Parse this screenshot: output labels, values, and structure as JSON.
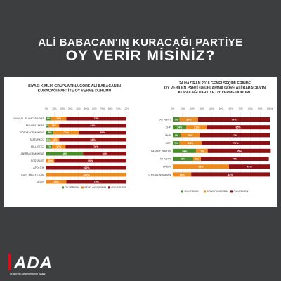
{
  "header": {
    "title_line1": "ALİ BABACAN'IN KURACAĞI PARTİYE",
    "title_line2": "OY VERİR MİSİNİZ?"
  },
  "logo": {
    "mark": "ADA",
    "tagline": "Araştırma Değerlendirme Analiz"
  },
  "colors": {
    "evet": "#4c8a2e",
    "belki": "#ec8a1d",
    "hayir": "#8c1216",
    "background": "#3c3e40"
  },
  "chart_data": [
    {
      "type": "bar",
      "stacked": true,
      "orientation": "horizontal",
      "title": "SİYASİ KİMLİK GRUPLARINA GÖRE ALİ BABACAN'IN KURACAĞI PARTİYE OY VERME DURUMU",
      "title_lines": [
        "SİYASİ KİMLİK GRUPLARINA GÖRE ALİ BABACAN'IN",
        "KURACAĞI PARTİYE OY VERME DURUMU"
      ],
      "ticks": [
        "0%",
        "10%",
        "20%",
        "30%",
        "40%",
        "50%",
        "60%",
        "70%",
        "80%",
        "90%",
        "100%"
      ],
      "xlim": [
        0,
        100
      ],
      "grid": true,
      "legend": "bottom",
      "categories": [
        "SİYASAL İSLAMCI/DİNDAR",
        "MUHAFAZAKAR",
        "SOSYAL DEMOKRAT",
        "ATATÜRKÇÜ",
        "MİLLİYETÇİ",
        "LİBERAL DEMOKRAT",
        "SOSYALİST",
        "APOLİTİK",
        "KÜRT MİLLİYETÇİSİ",
        "DİĞER"
      ],
      "series": [
        {
          "name": "OY VERİRİM",
          "values": [
            6,
            3,
            9,
            5,
            7,
            46,
            0,
            0,
            0,
            0
          ]
        },
        {
          "name": "BELKİ OY VERİRİM",
          "values": [
            19,
            13,
            32,
            11,
            17,
            0,
            10,
            0,
            100,
            25
          ]
        },
        {
          "name": "OY VERMEM",
          "values": [
            75,
            84,
            59,
            84,
            76,
            54,
            90,
            100,
            0,
            75
          ]
        }
      ],
      "labels": [
        [
          "6%",
          "19%",
          "75%"
        ],
        [
          "3%",
          "13%",
          "84%"
        ],
        [
          "9%",
          "32%",
          "59%"
        ],
        [
          "5%",
          "11%",
          "84%"
        ],
        [
          "7%",
          "17%",
          "76%"
        ],
        [
          "46%",
          "",
          "54%"
        ],
        [
          "",
          "10%",
          "90%"
        ],
        [
          "",
          "",
          "100%"
        ],
        [
          "",
          "100%",
          ""
        ],
        [
          "",
          "25%",
          "75%"
        ]
      ]
    },
    {
      "type": "bar",
      "stacked": true,
      "orientation": "horizontal",
      "title": "24 HAZİRAN 2018 GENELSEÇİMLERİNDE OY VERİLEN PARTİ GRUPLARINA GÖRE ALİ BABACAN'IN KURACAĞI PARTİYE OY VERME DURUMU",
      "title_lines": [
        "24 HAZİRAN 2018 GENELSEÇİMLERİNDE",
        "OY VERİLEN PARTİ GRUPLARINA GÖRE ALİ BABACAN'IN",
        "KURACAĞI PARTİYE OY VERME DURUMU"
      ],
      "ticks": [
        "0%",
        "10%",
        "20%",
        "30%",
        "40%",
        "50%",
        "60%",
        "70%",
        "80%",
        "90%",
        "100%"
      ],
      "xlim": [
        0,
        100
      ],
      "grid": true,
      "legend": "bottom",
      "categories": [
        "AK PARTİ",
        "CHP",
        "MHP",
        "HDP",
        "SAADET PARTİSİ",
        "İYİ PARTİ",
        "DİĞER",
        "OY KULLANMAYAN"
      ],
      "series": [
        {
          "name": "OY VERİRİM",
          "values": [
            7,
            14,
            8,
            7,
            24,
            21,
            0,
            0
          ]
        },
        {
          "name": "BELKİ OY VERİRİM",
          "values": [
            19,
            21,
            20,
            23,
            12,
            8,
            58,
            19
          ]
        },
        {
          "name": "OY VERMEM",
          "values": [
            74,
            65,
            72,
            70,
            65,
            70,
            42,
            81
          ]
        }
      ],
      "labels": [
        [
          "7%",
          "19%",
          "74%"
        ],
        [
          "14%",
          "21%",
          "65%"
        ],
        [
          "8%",
          "20%",
          "72%"
        ],
        [
          "7%",
          "23%",
          "70%"
        ],
        [
          "24%",
          "12%",
          "65%"
        ],
        [
          "21%",
          "8%",
          "70%"
        ],
        [
          "",
          "58%",
          "42%"
        ],
        [
          "",
          "19%",
          "81%"
        ]
      ]
    }
  ]
}
